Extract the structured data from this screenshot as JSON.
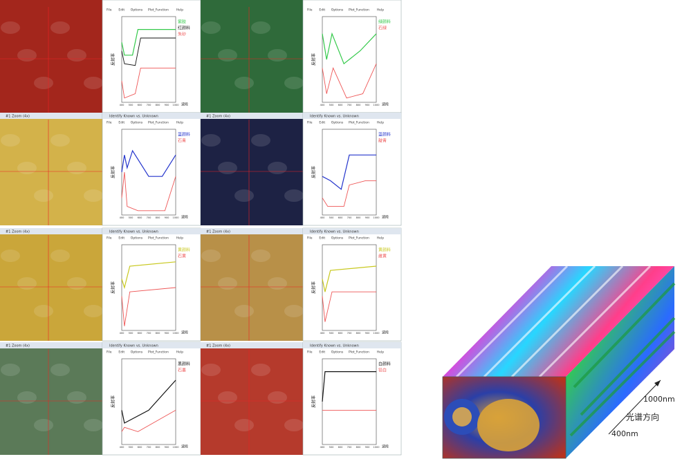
{
  "window_title": "Identify Known vs. Unknown",
  "zoom_title": "#1 Zoom (4x)",
  "menu": [
    "File",
    "Edit",
    "Options",
    "Plot_Function",
    "Help"
  ],
  "y_label": "反射率",
  "x_label": "波段",
  "x_ticks": [
    "400",
    "500",
    "600",
    "700",
    "800",
    "900",
    "1000"
  ],
  "panels": [
    {
      "legend": [
        "紫胶",
        "红颜料",
        "朱砂"
      ]
    },
    {
      "legend": [
        "绿颜料",
        "石绿"
      ]
    },
    {
      "legend": [
        "蓝颜料",
        "石青"
      ]
    },
    {
      "legend": [
        "蓝颜料",
        "靛青"
      ]
    },
    {
      "legend": [
        "黄颜料",
        "石黄"
      ]
    },
    {
      "legend": [
        "黄颜料",
        "雌黄"
      ]
    },
    {
      "legend": [
        "黑颜料",
        "石墨"
      ]
    },
    {
      "legend": [
        "白颜料",
        "铅白"
      ]
    }
  ],
  "cube": {
    "top_label": "1000nm",
    "direction_label": "光谱方向",
    "bottom_label": "400nm"
  }
}
